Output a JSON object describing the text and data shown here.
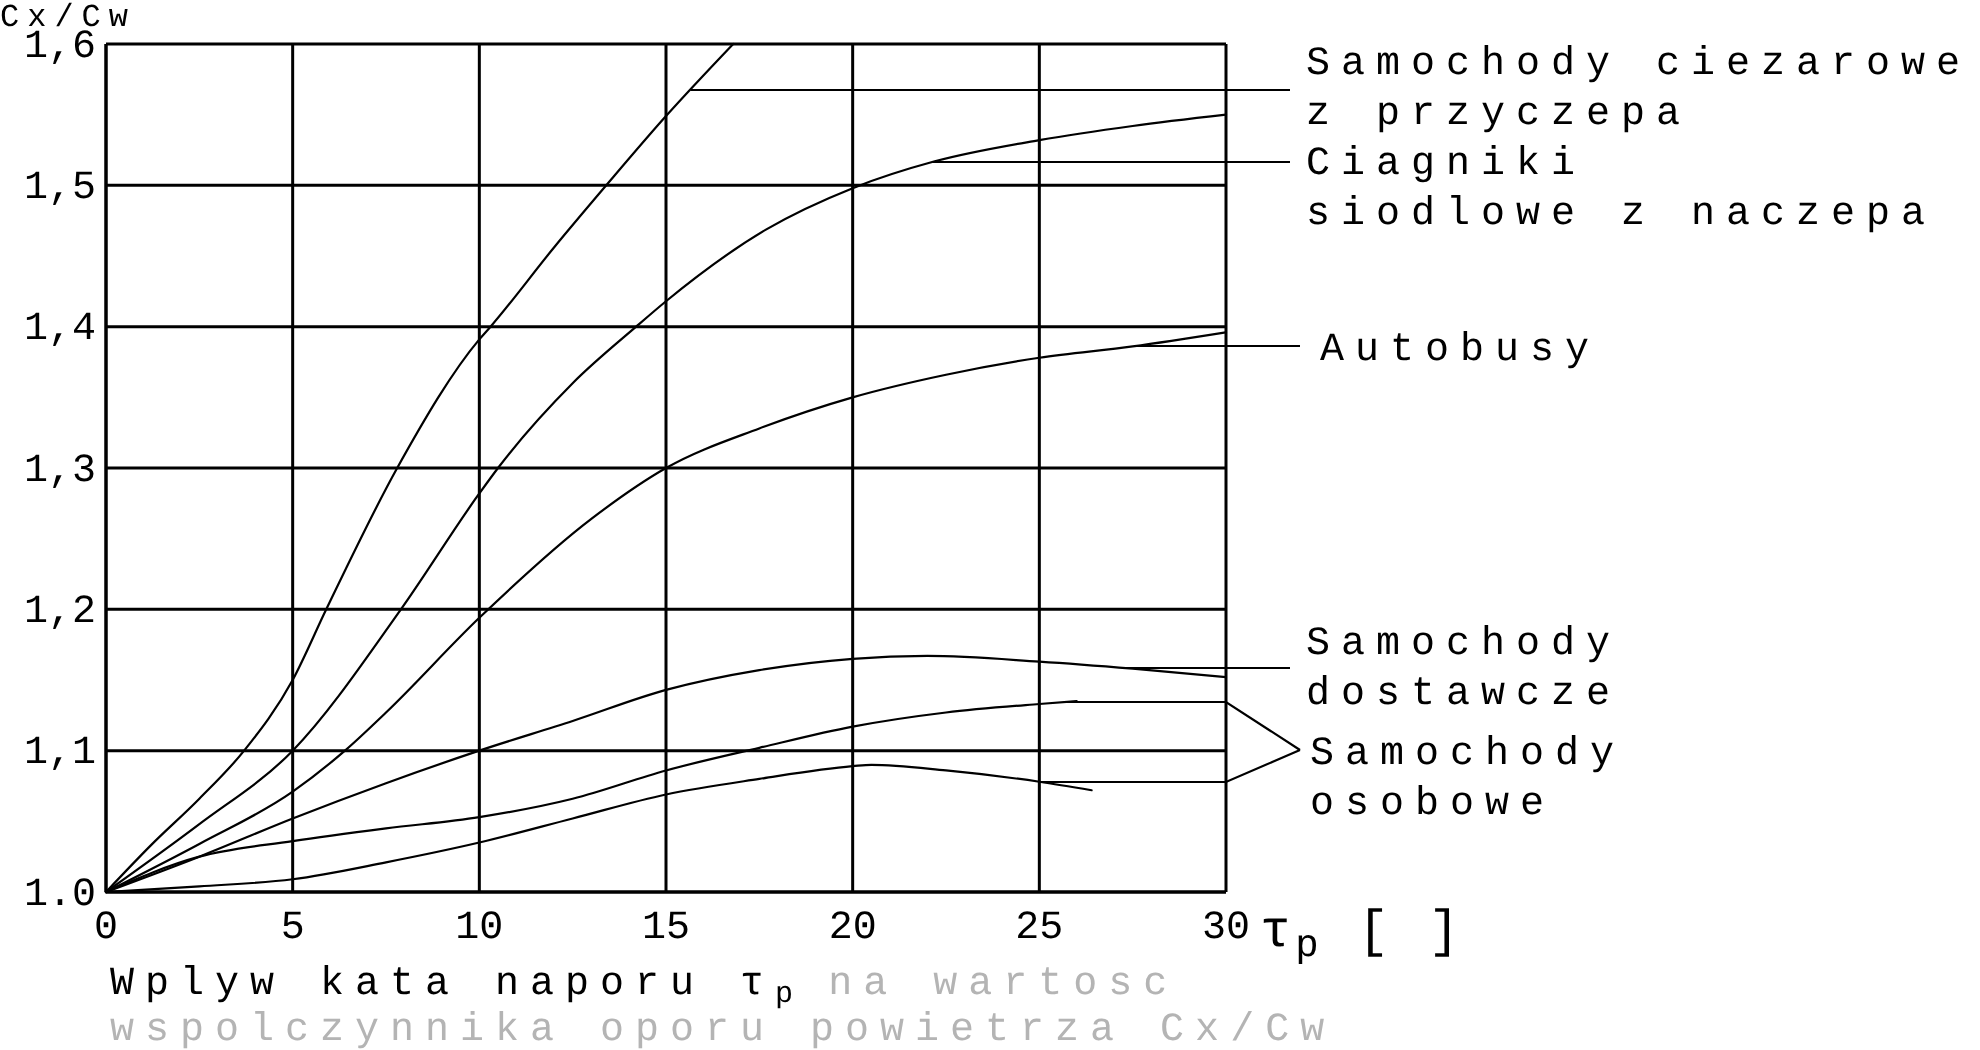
{
  "chart_data": {
    "type": "line",
    "xlabel": "τ$_{p}$ [ ]",
    "ylabel": "Cx/Cw",
    "annotations": [
      "Wplyw kata naporu τ$_{p}$",
      "na wartosc",
      "wspolczynnika oporu powietrza Cx/Cw"
    ],
    "xlim": [
      0,
      30
    ],
    "xticks": [
      0,
      5,
      10,
      15,
      20,
      25,
      30
    ],
    "ylim": [
      1.0,
      1.6
    ],
    "yticks": [
      {
        "value": 1.0,
        "label": "1.0"
      },
      {
        "value": 1.1,
        "label": "1,1"
      },
      {
        "value": 1.2,
        "label": "1,2"
      },
      {
        "value": 1.3,
        "label": "1,3"
      },
      {
        "value": 1.4,
        "label": "1,4"
      },
      {
        "value": 1.5,
        "label": "1,5"
      },
      {
        "value": 1.6,
        "label": "1,6"
      }
    ],
    "grid": true,
    "legend": "right",
    "series": [
      {
        "name": "Samochody ciezarowe z przyczepa",
        "color": "#000000",
        "x": [
          0,
          1.2,
          2.5,
          3.7,
          5,
          5.9,
          7.8,
          10,
          10.3,
          12,
          13.4,
          15,
          16.8
        ],
        "values": [
          1.0,
          1.033,
          1.066,
          1.1,
          1.15,
          1.2,
          1.3,
          1.391,
          1.4,
          1.456,
          1.5,
          1.549,
          1.6
        ]
      },
      {
        "name": "Ciagniki siodlowe z naczepa",
        "color": "#000000",
        "x": [
          0,
          2.5,
          5,
          7.9,
          10,
          10.5,
          12.5,
          14.2,
          15,
          17.7,
          20,
          22.2,
          25,
          27.5,
          30
        ],
        "values": [
          1.0,
          1.048,
          1.1,
          1.2,
          1.282,
          1.3,
          1.36,
          1.4,
          1.418,
          1.469,
          1.498,
          1.517,
          1.532,
          1.542,
          1.55
        ]
      },
      {
        "name": "Autobusy",
        "color": "#000000",
        "x": [
          0,
          2.5,
          5,
          6.4,
          7.5,
          10,
          13,
          15,
          17.5,
          20,
          22.5,
          25,
          27.5,
          30
        ],
        "values": [
          1.0,
          1.034,
          1.071,
          1.1,
          1.127,
          1.194,
          1.264,
          1.3,
          1.328,
          1.35,
          1.366,
          1.378,
          1.386,
          1.396
        ]
      },
      {
        "name": "Samochody dostawcze",
        "color": "#000000",
        "x": [
          0,
          2.5,
          5,
          7.5,
          10,
          12.5,
          15,
          17.5,
          20,
          22,
          25,
          27.5,
          30
        ],
        "values": [
          1.0,
          1.025,
          1.052,
          1.077,
          1.1,
          1.121,
          1.143,
          1.157,
          1.165,
          1.167,
          1.163,
          1.158,
          1.152
        ]
      },
      {
        "name": "Samochody osobowe",
        "color": "#000000",
        "x": [
          0,
          2.5,
          5,
          7.5,
          10,
          12.5,
          15,
          17.5,
          20,
          22.5,
          25,
          26
        ],
        "values": [
          1.0,
          1.025,
          1.036,
          1.045,
          1.053,
          1.066,
          1.086,
          1.102,
          1.117,
          1.127,
          1.133,
          1.135
        ]
      },
      {
        "color": "#000000",
        "x": [
          0,
          2.5,
          5,
          7.5,
          10,
          12.5,
          15,
          17.5,
          20,
          20.5,
          22.5,
          25,
          26.4
        ],
        "values": [
          1.0,
          1.004,
          1.009,
          1.021,
          1.035,
          1.052,
          1.069,
          1.08,
          1.089,
          1.09,
          1.086,
          1.078,
          1.072
        ]
      }
    ]
  }
}
